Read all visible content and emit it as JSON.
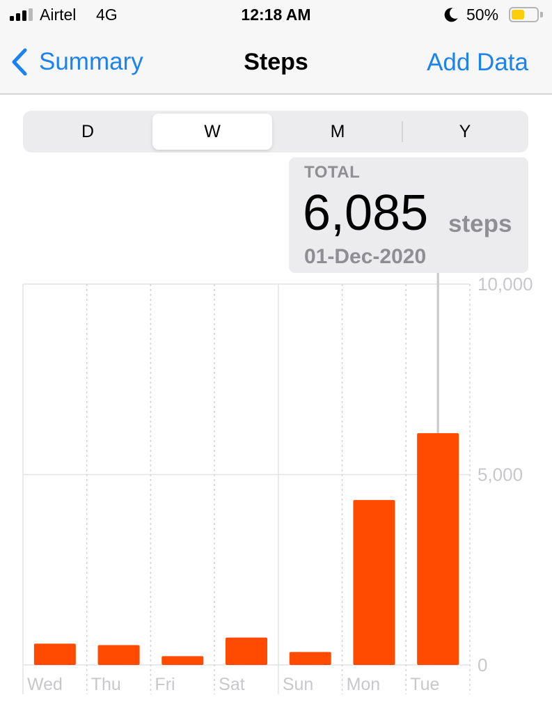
{
  "status_bar": {
    "carrier": "Airtel",
    "network": "4G",
    "time": "12:18 AM",
    "battery_percent": "50%",
    "battery_level": 0.5,
    "battery_color": "#fbcd0a",
    "signal_bars_filled": 3,
    "signal_icon": "cellular-signal-icon",
    "focus_icon": "moon-icon",
    "battery_icon": "battery-icon"
  },
  "nav": {
    "back_label": "Summary",
    "back_icon": "chevron-left-icon",
    "title": "Steps",
    "action_label": "Add Data",
    "accent_color": "#1b82f0"
  },
  "segments": {
    "items": [
      "D",
      "W",
      "M",
      "Y"
    ],
    "selected": "W"
  },
  "callout": {
    "label": "TOTAL",
    "value": "6,085",
    "unit": "steps",
    "date": "01-Dec-2020"
  },
  "chart_data": {
    "type": "bar",
    "categories": [
      "Wed",
      "Thu",
      "Fri",
      "Sat",
      "Sun",
      "Mon",
      "Tue"
    ],
    "values": [
      560,
      520,
      230,
      720,
      340,
      4330,
      6085
    ],
    "ylim": [
      0,
      10000
    ],
    "yticks": [
      0,
      5000,
      10000
    ],
    "ytick_labels": [
      "0",
      "5,000",
      "10,000"
    ],
    "highlighted_category": "Tue",
    "bar_color": "#ff4a00",
    "grid": true,
    "title": "",
    "xlabel": "",
    "ylabel": ""
  }
}
